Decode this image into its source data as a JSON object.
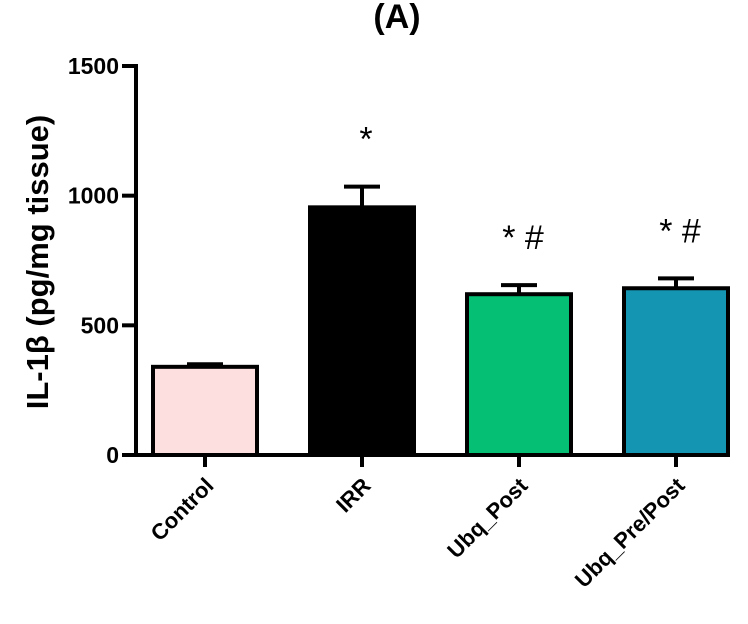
{
  "chart_data": {
    "type": "bar",
    "title": "(A)",
    "ylabel": "IL-1β (pg/mg tissue)",
    "xlabel": "",
    "ylim": [
      0,
      1500
    ],
    "yticks": [
      0,
      500,
      1000,
      1500
    ],
    "categories": [
      "Control",
      "IRR",
      "Ubq_Post",
      "Ubq_Pre/Post"
    ],
    "values": [
      340,
      955,
      620,
      643
    ],
    "errors": [
      10,
      80,
      35,
      38
    ],
    "annotations": [
      "",
      "*",
      "* #",
      "* #"
    ],
    "colors": [
      "#fddfe0",
      "#000000",
      "#05c074",
      "#1496b3"
    ],
    "grid": false,
    "legend": "none"
  }
}
